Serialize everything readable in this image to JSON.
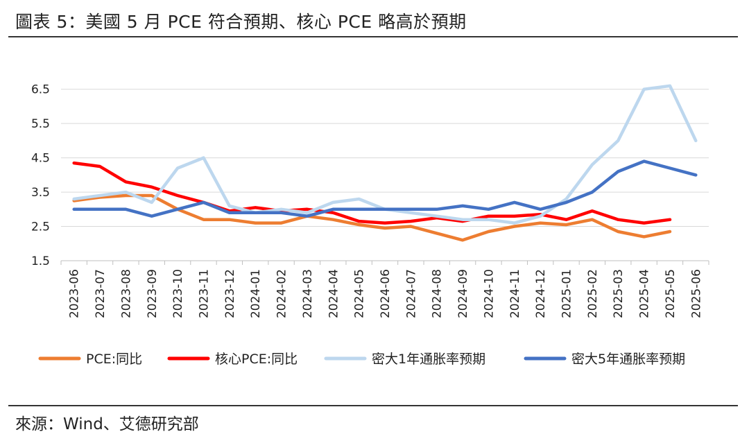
{
  "header": {
    "title": "圖表 5：美國 5 月 PCE 符合預期、核心 PCE 略高於預期"
  },
  "footer": {
    "source": "來源：Wind、艾德研究部"
  },
  "chart_data": {
    "type": "line",
    "title": "圖表 5：美國 5 月 PCE 符合預期、核心 PCE 略高於預期",
    "xlabel": "",
    "ylabel": "",
    "ylim": [
      1.5,
      7.0
    ],
    "yticks": [
      1.5,
      2.5,
      3.5,
      4.5,
      5.5,
      6.5
    ],
    "grid": "horizontal",
    "legend_position": "bottom",
    "categories": [
      "2023-06",
      "2023-07",
      "2023-08",
      "2023-09",
      "2023-10",
      "2023-11",
      "2023-12",
      "2024-01",
      "2024-02",
      "2024-03",
      "2024-04",
      "2024-05",
      "2024-06",
      "2024-07",
      "2024-08",
      "2024-09",
      "2024-10",
      "2024-11",
      "2024-12",
      "2025-01",
      "2025-02",
      "2025-03",
      "2025-04",
      "2025-05",
      "2025-06"
    ],
    "series": [
      {
        "name": "PCE:同比",
        "color": "#ED7D31",
        "values": [
          3.25,
          3.35,
          3.4,
          3.4,
          3.0,
          2.7,
          2.7,
          2.6,
          2.6,
          2.8,
          2.7,
          2.55,
          2.45,
          2.5,
          2.3,
          2.1,
          2.35,
          2.5,
          2.6,
          2.55,
          2.7,
          2.35,
          2.2,
          2.35,
          null
        ]
      },
      {
        "name": "核心PCE:同比",
        "color": "#FF0000",
        "values": [
          4.35,
          4.25,
          3.8,
          3.65,
          3.4,
          3.2,
          2.95,
          3.05,
          2.95,
          3.0,
          2.9,
          2.65,
          2.6,
          2.65,
          2.75,
          2.65,
          2.8,
          2.8,
          2.85,
          2.7,
          2.95,
          2.7,
          2.6,
          2.7,
          null
        ]
      },
      {
        "name": "密大1年通胀率预期",
        "color": "#BDD7EE",
        "values": [
          3.3,
          3.4,
          3.5,
          3.2,
          4.2,
          4.5,
          3.1,
          2.9,
          3.0,
          2.9,
          3.2,
          3.3,
          3.0,
          2.9,
          2.8,
          2.7,
          2.7,
          2.6,
          2.8,
          3.3,
          4.3,
          5.0,
          6.5,
          6.6,
          5.0
        ]
      },
      {
        "name": "密大5年通胀率预期",
        "color": "#4472C4",
        "values": [
          3.0,
          3.0,
          3.0,
          2.8,
          3.0,
          3.2,
          2.9,
          2.9,
          2.9,
          2.8,
          3.0,
          3.0,
          3.0,
          3.0,
          3.0,
          3.1,
          3.0,
          3.2,
          3.0,
          3.2,
          3.5,
          4.1,
          4.4,
          4.2,
          4.0
        ]
      }
    ]
  }
}
